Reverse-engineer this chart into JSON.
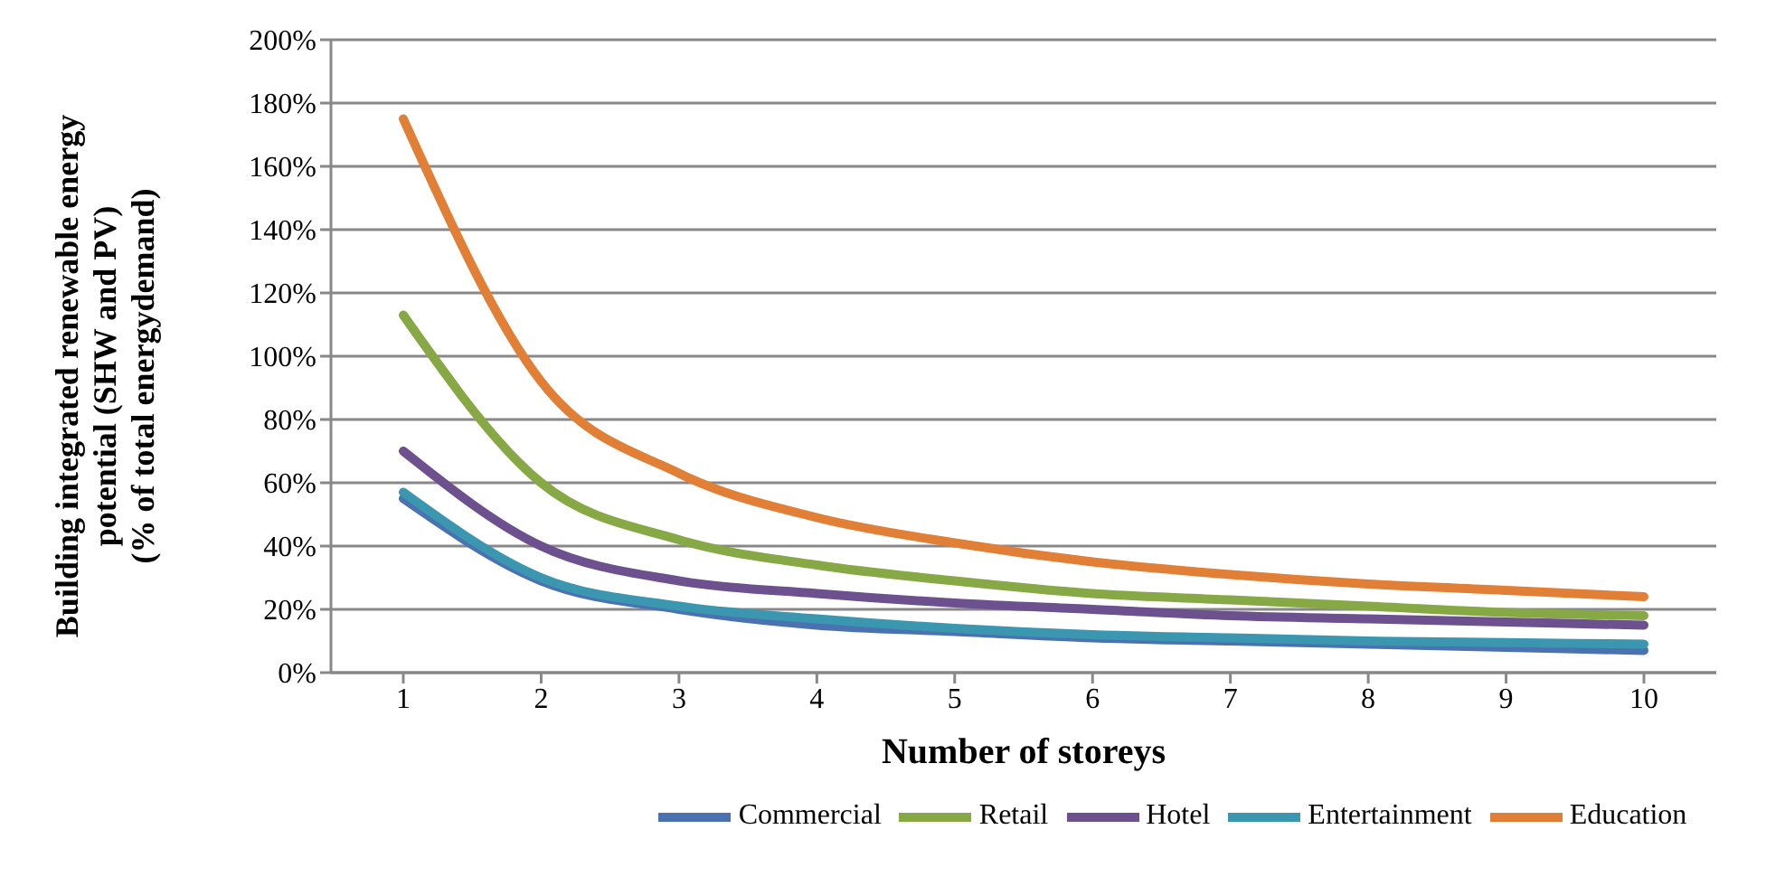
{
  "chart_data": {
    "type": "line",
    "xlabel": "Number of storeys",
    "ylabel": "Building integrated renewable energy\npotential (SHW and PV)\n(% of  total energydemand)",
    "categories": [
      "1",
      "2",
      "3",
      "4",
      "5",
      "6",
      "7",
      "8",
      "9",
      "10"
    ],
    "series": [
      {
        "name": "Commercial",
        "color": "#4a72b0",
        "values": [
          55,
          29,
          20,
          15,
          13,
          11,
          10,
          9,
          8,
          7
        ]
      },
      {
        "name": "Retail",
        "color": "#86a845",
        "values": [
          113,
          60,
          42,
          34,
          29,
          25,
          23,
          21,
          19,
          18
        ]
      },
      {
        "name": "Hotel",
        "color": "#6c518e",
        "values": [
          70,
          40,
          29,
          25,
          22,
          20,
          18,
          17,
          16,
          15
        ]
      },
      {
        "name": "Entertainment",
        "color": "#3b96b0",
        "values": [
          57,
          30,
          21,
          17,
          14,
          12,
          11,
          10,
          9.5,
          9
        ]
      },
      {
        "name": "Education",
        "color": "#e07f35",
        "values": [
          175,
          92,
          63,
          49,
          41,
          35,
          31,
          28,
          26,
          24
        ]
      }
    ],
    "ylim": [
      0,
      200
    ],
    "yticks": [
      {
        "value": 0,
        "label": "0%"
      },
      {
        "value": 20,
        "label": "20%"
      },
      {
        "value": 40,
        "label": "40%"
      },
      {
        "value": 60,
        "label": "60%"
      },
      {
        "value": 80,
        "label": "80%"
      },
      {
        "value": 100,
        "label": "100%"
      },
      {
        "value": 120,
        "label": "120%"
      },
      {
        "value": 140,
        "label": "140%"
      },
      {
        "value": 160,
        "label": "160%"
      },
      {
        "value": 180,
        "label": "180%"
      },
      {
        "value": 200,
        "label": "200%"
      }
    ],
    "grid": "y",
    "legend": "bottom",
    "marker": "none",
    "line_style": "solid"
  }
}
